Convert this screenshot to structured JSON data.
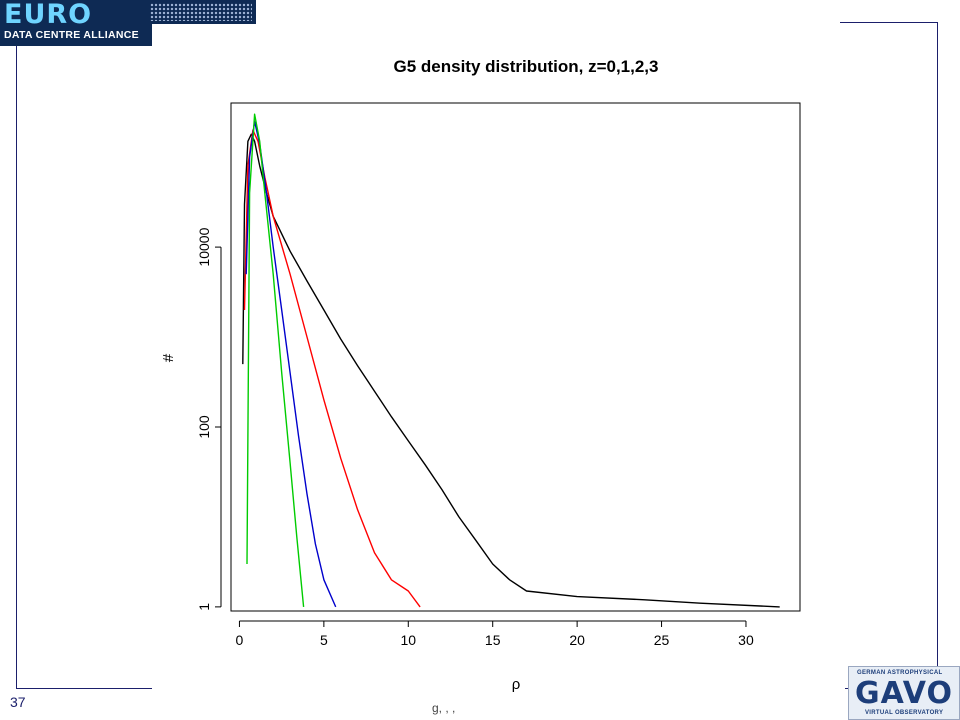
{
  "slide": {
    "number": "37",
    "footer_fragment": "g, , ,"
  },
  "logos": {
    "euro_word": "EURO",
    "euro_subtitle": "DATA CENTRE ALLIANCE",
    "gavo_top": "GERMAN ASTROPHYSICAL",
    "gavo_word": "GAVO",
    "gavo_bottom": "VIRTUAL OBSERVATORY"
  },
  "chart_data": {
    "type": "line",
    "title": "G5 density distribution, z=0,1,2,3",
    "xlabel": "ρ",
    "ylabel": "#",
    "x_ticks": [
      0,
      5,
      10,
      15,
      20,
      25,
      30
    ],
    "y_ticks": [
      1,
      100,
      10000
    ],
    "y_tick_labels": [
      "1",
      "100",
      "10000"
    ],
    "xlim": [
      -0.5,
      33.2
    ],
    "ylim": [
      0.9,
      400000
    ],
    "y_scale": "log",
    "grid": false,
    "legend": "none",
    "series": [
      {
        "color": "#000000",
        "x": [
          0.2,
          0.3,
          0.5,
          0.7,
          0.9,
          1.2,
          1.6,
          2,
          3,
          4,
          5,
          6,
          7,
          8,
          9,
          10,
          11,
          12,
          13,
          14,
          15,
          16,
          17,
          20,
          24,
          27.3,
          32
        ],
        "y": [
          500,
          30000,
          150000,
          180000,
          150000,
          80000,
          40000,
          22000,
          9000,
          4200,
          2000,
          950,
          480,
          250,
          130,
          70,
          38,
          20,
          10,
          5.5,
          3,
          2,
          1.5,
          1.3,
          1.2,
          1.1,
          1
        ]
      },
      {
        "color": "#ff0000",
        "x": [
          0.3,
          0.5,
          0.8,
          1.1,
          1.5,
          2,
          3,
          4,
          5,
          6,
          7,
          8,
          9,
          10,
          10.7
        ],
        "y": [
          2000,
          80000,
          200000,
          150000,
          60000,
          22000,
          5000,
          1000,
          200,
          45,
          12,
          4,
          2,
          1.5,
          1
        ]
      },
      {
        "color": "#0000cc",
        "x": [
          0.4,
          0.6,
          0.9,
          1.2,
          1.6,
          2,
          2.5,
          3,
          3.5,
          4,
          4.5,
          5,
          5.7
        ],
        "y": [
          5000,
          100000,
          250000,
          140000,
          40000,
          10000,
          2000,
          400,
          80,
          18,
          5,
          2,
          1
        ]
      },
      {
        "color": "#00cc00",
        "x": [
          0.45,
          0.6,
          0.9,
          1.2,
          1.5,
          2,
          2.5,
          3,
          3.4,
          3.8
        ],
        "y": [
          3,
          40000,
          300000,
          150000,
          40000,
          5000,
          400,
          40,
          6,
          1
        ]
      }
    ]
  }
}
